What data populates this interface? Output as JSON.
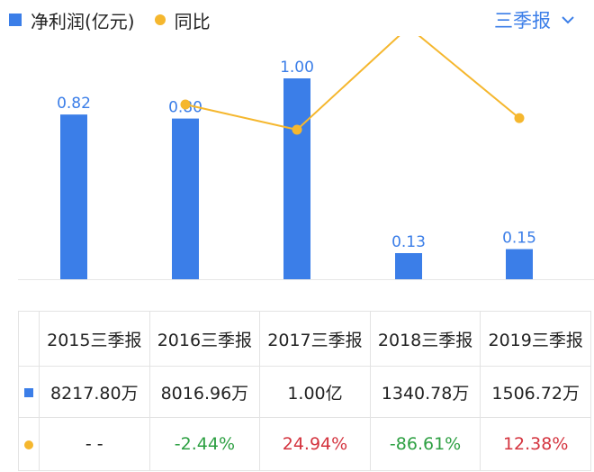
{
  "legend": {
    "bar_label": "净利润(亿元)",
    "line_label": "同比"
  },
  "period_selector": {
    "label": "三季报",
    "icon": "chevron-down-icon"
  },
  "colors": {
    "bar": "#3b7ee8",
    "line": "#f5b72e",
    "positive": "#2ea043",
    "negative": "#d4343f",
    "label": "#3b7ee8"
  },
  "chart_data": {
    "type": "bar",
    "categories": [
      "2015三季报",
      "2016三季报",
      "2017三季报",
      "2018三季报",
      "2019三季报"
    ],
    "series": [
      {
        "name": "净利润(亿元)",
        "type": "bar",
        "values": [
          0.82,
          0.8,
          1.0,
          0.13,
          0.15
        ],
        "labels": [
          "0.82",
          "0.80",
          "1.00",
          "0.13",
          "0.15"
        ]
      },
      {
        "name": "同比",
        "type": "line",
        "values": [
          null,
          -2.44,
          24.94,
          -86.61,
          12.38
        ]
      }
    ],
    "ylim": [
      0,
      1.2
    ]
  },
  "table": {
    "headers": [
      "2015三季报",
      "2016三季报",
      "2017三季报",
      "2018三季报",
      "2019三季报"
    ],
    "profit_row": [
      "8217.80万",
      "8016.96万",
      "1.00亿",
      "1340.78万",
      "1506.72万"
    ],
    "yoy_row": [
      "- -",
      "-2.44%",
      "24.94%",
      "-86.61%",
      "12.38%"
    ]
  }
}
